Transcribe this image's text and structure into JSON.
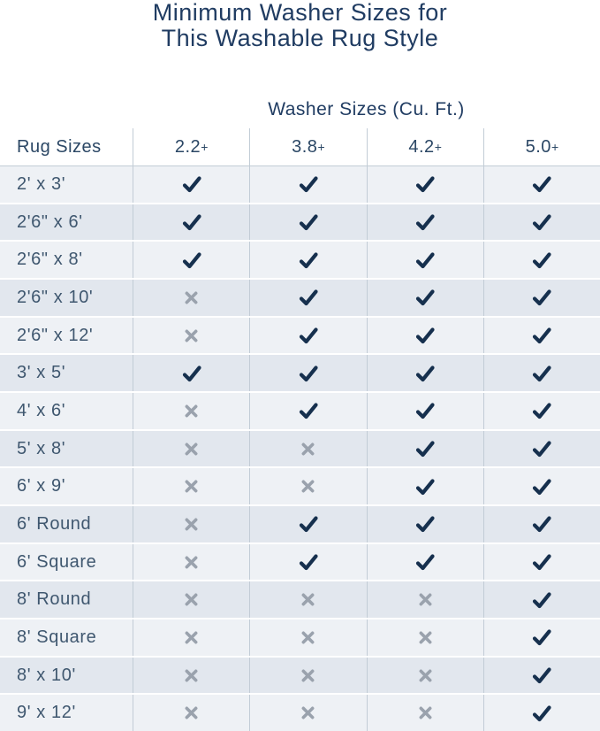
{
  "title": {
    "line1": "Minimum Washer Sizes for",
    "line2": "This Washable Rug Style"
  },
  "table": {
    "group_header": "Washer Sizes (Cu. Ft.)",
    "row_header": "Rug Sizes",
    "columns": [
      "2.2+",
      "3.8+",
      "4.2+",
      "5.0+"
    ],
    "rows": [
      {
        "size": "2' x 3'",
        "fits": [
          true,
          true,
          true,
          true
        ]
      },
      {
        "size": "2'6\" x 6'",
        "fits": [
          true,
          true,
          true,
          true
        ]
      },
      {
        "size": "2'6\" x 8'",
        "fits": [
          true,
          true,
          true,
          true
        ]
      },
      {
        "size": "2'6\" x 10'",
        "fits": [
          false,
          true,
          true,
          true
        ]
      },
      {
        "size": "2'6\" x 12'",
        "fits": [
          false,
          true,
          true,
          true
        ]
      },
      {
        "size": "3' x 5'",
        "fits": [
          true,
          true,
          true,
          true
        ]
      },
      {
        "size": "4' x 6'",
        "fits": [
          false,
          true,
          true,
          true
        ]
      },
      {
        "size": "5' x 8'",
        "fits": [
          false,
          false,
          true,
          true
        ]
      },
      {
        "size": "6' x 9'",
        "fits": [
          false,
          false,
          true,
          true
        ]
      },
      {
        "size": "6' Round",
        "fits": [
          false,
          true,
          true,
          true
        ]
      },
      {
        "size": "6' Square",
        "fits": [
          false,
          true,
          true,
          true
        ]
      },
      {
        "size": "8' Round",
        "fits": [
          false,
          false,
          false,
          true
        ]
      },
      {
        "size": "8' Square",
        "fits": [
          false,
          false,
          false,
          true
        ]
      },
      {
        "size": "8' x 10'",
        "fits": [
          false,
          false,
          false,
          true
        ]
      },
      {
        "size": "9' x 12'",
        "fits": [
          false,
          false,
          false,
          true
        ]
      }
    ]
  },
  "icons": {
    "fits": "check-icon",
    "does_not_fit": "x-icon"
  },
  "colors": {
    "title": "#203c62",
    "header_text": "#2b4765",
    "row_text": "#3f576f",
    "check": "#16304e",
    "cross": "#9aa2ad",
    "row_light": "#eef1f5",
    "row_dark": "#e2e7ee",
    "divider": "#c2ccd6"
  },
  "chart_data": {
    "type": "table",
    "title": "Minimum Washer Sizes for This Washable Rug Style",
    "column_group_label": "Washer Sizes (Cu. Ft.)",
    "columns": [
      "Rug Sizes",
      "2.2+",
      "3.8+",
      "4.2+",
      "5.0+"
    ],
    "rows": [
      [
        "2' x 3'",
        true,
        true,
        true,
        true
      ],
      [
        "2'6\" x 6'",
        true,
        true,
        true,
        true
      ],
      [
        "2'6\" x 8'",
        true,
        true,
        true,
        true
      ],
      [
        "2'6\" x 10'",
        false,
        true,
        true,
        true
      ],
      [
        "2'6\" x 12'",
        false,
        true,
        true,
        true
      ],
      [
        "3' x 5'",
        true,
        true,
        true,
        true
      ],
      [
        "4' x 6'",
        false,
        true,
        true,
        true
      ],
      [
        "5' x 8'",
        false,
        false,
        true,
        true
      ],
      [
        "6' x 9'",
        false,
        false,
        true,
        true
      ],
      [
        "6' Round",
        false,
        true,
        true,
        true
      ],
      [
        "6' Square",
        false,
        true,
        true,
        true
      ],
      [
        "8' Round",
        false,
        false,
        false,
        true
      ],
      [
        "8' Square",
        false,
        false,
        false,
        true
      ],
      [
        "8' x 10'",
        false,
        false,
        false,
        true
      ],
      [
        "9' x 12'",
        false,
        false,
        false,
        true
      ]
    ],
    "cell_encoding": {
      "true": "checkmark (fits)",
      "false": "x (does not fit)"
    }
  }
}
